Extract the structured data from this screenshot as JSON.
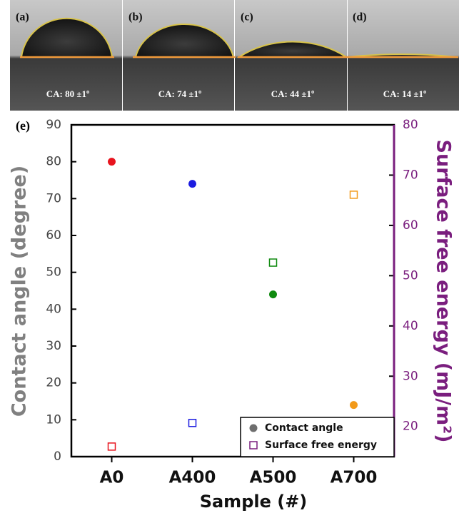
{
  "photos": [
    {
      "label": "(a)",
      "caption": "CA: 80 ±1º"
    },
    {
      "label": "(b)",
      "caption": "CA: 74 ±1º"
    },
    {
      "label": "(c)",
      "caption": "CA: 44 ±1º"
    },
    {
      "label": "(d)",
      "caption": "CA: 14 ±1º"
    }
  ],
  "chart_data": {
    "type": "scatter",
    "panel_label": "(e)",
    "x_label": "Sample (#)",
    "y_label": "Contact angle (degree)",
    "y2_label": "Surface free energy (mJ/m²)",
    "categories": [
      "A0",
      "A400",
      "A500",
      "A700"
    ],
    "series": [
      {
        "name": "Contact angle",
        "marker": "circle",
        "color": "#6e6e6e",
        "colors": [
          "#e8141e",
          "#1c1ce0",
          "#0f8a0f",
          "#f29a1a"
        ],
        "values": [
          80,
          74,
          44,
          14
        ]
      },
      {
        "name": "Surface free energy",
        "marker": "square",
        "axis": "y2",
        "color": "#7a1e7e",
        "colors": [
          "#e8141e",
          "#1c1ce0",
          "#0f8a0f",
          "#f29a1a"
        ],
        "values": [
          16,
          20.7,
          52.6,
          66.1
        ]
      }
    ],
    "ylim": [
      0,
      90
    ],
    "yticks": [
      0,
      10,
      20,
      30,
      40,
      50,
      60,
      70,
      80,
      90
    ],
    "y2lim": [
      14,
      80
    ],
    "y2ticks": [
      20,
      30,
      40,
      50,
      60,
      70,
      80
    ],
    "y2_color": "#7a1e7e",
    "legend": "lower right"
  }
}
